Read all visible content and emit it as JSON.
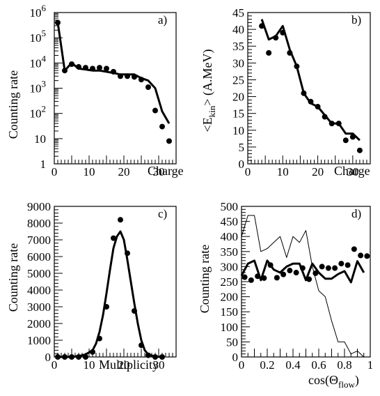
{
  "chart_data": [
    {
      "panel": "a)",
      "type": "scatter",
      "xlabel": "Charge",
      "ylabel": "Counting rate",
      "xlim": [
        0,
        35
      ],
      "ylim": [
        1,
        1000000
      ],
      "yscale": "log",
      "xticks": [
        0,
        10,
        20,
        30
      ],
      "yticks": [
        {
          "v": 1,
          "base": "1",
          "exp": ""
        },
        {
          "v": 10,
          "base": "10",
          "exp": ""
        },
        {
          "v": 100,
          "base": "10",
          "exp": "2"
        },
        {
          "v": 1000,
          "base": "10",
          "exp": "3"
        },
        {
          "v": 10000,
          "base": "10",
          "exp": "4"
        },
        {
          "v": 100000,
          "base": "10",
          "exp": "5"
        },
        {
          "v": 1000000,
          "base": "10",
          "exp": "6"
        }
      ],
      "series": [
        {
          "style": "points",
          "x": [
            1,
            3,
            5,
            7,
            9,
            11,
            13,
            15,
            17,
            19,
            21,
            23,
            25,
            27,
            29,
            31,
            33
          ],
          "y": [
            400000,
            5000,
            9000,
            7000,
            6500,
            6000,
            6500,
            6000,
            4500,
            3000,
            3000,
            2800,
            2200,
            1100,
            130,
            30,
            8
          ]
        },
        {
          "style": "line",
          "x": [
            1,
            3,
            5,
            7,
            9,
            11,
            13,
            15,
            17,
            19,
            21,
            23,
            25,
            27,
            29,
            31,
            33
          ],
          "y": [
            400000,
            5000,
            10000,
            6000,
            5500,
            5000,
            5000,
            4500,
            4000,
            3500,
            3500,
            3500,
            2500,
            2000,
            1000,
            120,
            40
          ]
        }
      ]
    },
    {
      "panel": "b)",
      "type": "scatter",
      "xlabel": "Charge",
      "ylabel": "<E_kin> (A.MeV)",
      "xlim": [
        0,
        35
      ],
      "ylim": [
        0,
        45
      ],
      "yscale": "linear",
      "xticks": [
        0,
        10,
        20,
        30
      ],
      "yticks": [
        0,
        5,
        10,
        15,
        20,
        25,
        30,
        35,
        40,
        45
      ],
      "series": [
        {
          "style": "points",
          "x": [
            4,
            6,
            8,
            10,
            12,
            14,
            16,
            18,
            20,
            22,
            24,
            26,
            28,
            30,
            32
          ],
          "y": [
            41,
            33,
            37.5,
            39,
            33,
            29,
            21,
            18.5,
            17,
            14,
            12,
            12,
            7,
            8,
            4
          ]
        },
        {
          "style": "line",
          "x": [
            4,
            6,
            8,
            10,
            12,
            14,
            16,
            18,
            20,
            22,
            24,
            26,
            28,
            30,
            32
          ],
          "y": [
            43,
            37,
            38,
            41,
            34,
            29,
            21,
            18,
            17,
            14.5,
            12,
            12,
            9,
            9,
            7
          ]
        }
      ]
    },
    {
      "panel": "c)",
      "type": "scatter",
      "xlabel": "Multiplicity",
      "ylabel": "Counting rate",
      "xlim": [
        0,
        35
      ],
      "ylim": [
        0,
        9000
      ],
      "yscale": "linear",
      "xticks": [
        0,
        10,
        20,
        30
      ],
      "yticks": [
        0,
        1000,
        2000,
        3000,
        4000,
        5000,
        6000,
        7000,
        8000,
        9000
      ],
      "series": [
        {
          "style": "points",
          "x": [
            1,
            3,
            5,
            7,
            9,
            11,
            13,
            15,
            17,
            19,
            21,
            23,
            25,
            27,
            29,
            31
          ],
          "y": [
            0,
            0,
            0,
            0,
            0,
            300,
            1100,
            3000,
            7100,
            8200,
            6200,
            2750,
            700,
            100,
            0,
            0
          ]
        },
        {
          "style": "line",
          "x": [
            1,
            3,
            5,
            7,
            9,
            11,
            12,
            13,
            14,
            15,
            16,
            17,
            18,
            19,
            20,
            21,
            22,
            23,
            24,
            25,
            26,
            27,
            29,
            31
          ],
          "y": [
            0,
            0,
            0,
            50,
            150,
            400,
            800,
            1500,
            2500,
            3800,
            5200,
            6500,
            7200,
            7500,
            7000,
            5800,
            4500,
            3200,
            2000,
            1000,
            400,
            150,
            20,
            0
          ]
        }
      ]
    },
    {
      "panel": "d)",
      "type": "scatter",
      "xlabel": "cos(Θ_flow)",
      "ylabel": "Counting rate",
      "xlim": [
        0,
        1
      ],
      "ylim": [
        0,
        500
      ],
      "yscale": "linear",
      "xticks": [
        0,
        0.2,
        0.4,
        0.6,
        0.8,
        1
      ],
      "yticks": [
        0,
        50,
        100,
        150,
        200,
        250,
        300,
        350,
        400,
        450,
        500
      ],
      "series": [
        {
          "style": "points",
          "x": [
            0.025,
            0.075,
            0.125,
            0.175,
            0.225,
            0.275,
            0.325,
            0.375,
            0.425,
            0.475,
            0.525,
            0.575,
            0.625,
            0.675,
            0.725,
            0.775,
            0.825,
            0.875,
            0.925,
            0.975
          ],
          "y": [
            265,
            255,
            268,
            262,
            305,
            263,
            274,
            287,
            280,
            295,
            258,
            278,
            300,
            295,
            295,
            310,
            305,
            358,
            337,
            335
          ]
        },
        {
          "style": "thick-line",
          "x": [
            0,
            0.05,
            0.1,
            0.15,
            0.2,
            0.25,
            0.3,
            0.35,
            0.4,
            0.45,
            0.5,
            0.55,
            0.6,
            0.65,
            0.7,
            0.75,
            0.8,
            0.85,
            0.9,
            0.95
          ],
          "y": [
            270,
            310,
            320,
            255,
            320,
            290,
            280,
            300,
            310,
            310,
            255,
            310,
            280,
            260,
            260,
            275,
            285,
            248,
            318,
            280
          ]
        },
        {
          "style": "thin-line",
          "x": [
            0,
            0.05,
            0.1,
            0.15,
            0.2,
            0.25,
            0.3,
            0.35,
            0.4,
            0.45,
            0.5,
            0.55,
            0.6,
            0.65,
            0.7,
            0.75,
            0.8,
            0.85,
            0.9,
            0.95
          ],
          "y": [
            400,
            470,
            470,
            350,
            360,
            380,
            400,
            330,
            400,
            380,
            420,
            300,
            220,
            200,
            120,
            50,
            50,
            10,
            20,
            0
          ]
        }
      ]
    }
  ],
  "ylabel_b_parts": {
    "main": "<E",
    "sub": "kin",
    "rest": "> (A.MeV)"
  },
  "xlabel_d_parts": {
    "main": "cos(Θ",
    "sub": "flow",
    "rest": ")"
  }
}
